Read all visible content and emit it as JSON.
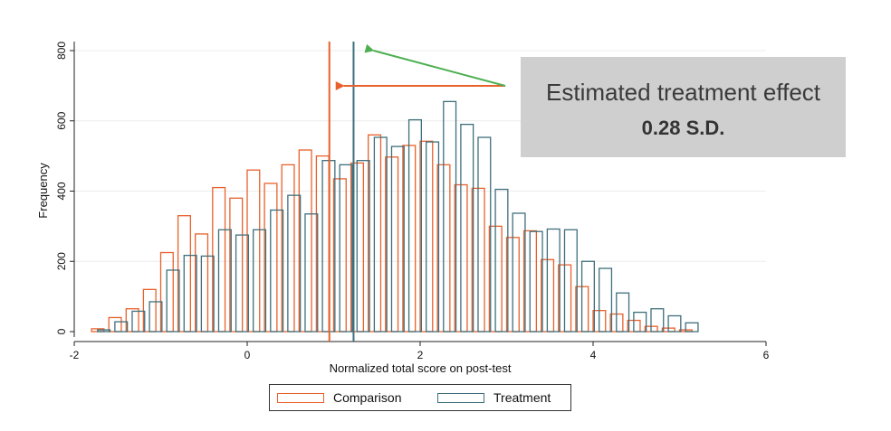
{
  "chart_data": {
    "type": "histogram",
    "xlabel": "Normalized total score on post-test",
    "ylabel": "Frequency",
    "xlim": [
      -2,
      6
    ],
    "ylim": [
      0,
      800
    ],
    "xticks": [
      -2,
      0,
      2,
      4,
      6
    ],
    "yticks": [
      0,
      200,
      400,
      600,
      800
    ],
    "grid": true,
    "legend_position": "bottom",
    "bin_width": 0.2,
    "series": [
      {
        "name": "Comparison",
        "color": "#e8612c",
        "bins": [
          {
            "x0": -1.8,
            "x1": -1.6,
            "y": 8
          },
          {
            "x0": -1.6,
            "x1": -1.4,
            "y": 40
          },
          {
            "x0": -1.4,
            "x1": -1.2,
            "y": 65
          },
          {
            "x0": -1.2,
            "x1": -1.0,
            "y": 120
          },
          {
            "x0": -1.0,
            "x1": -0.8,
            "y": 225
          },
          {
            "x0": -0.8,
            "x1": -0.6,
            "y": 330
          },
          {
            "x0": -0.6,
            "x1": -0.4,
            "y": 278
          },
          {
            "x0": -0.4,
            "x1": -0.2,
            "y": 410
          },
          {
            "x0": -0.2,
            "x1": 0.0,
            "y": 380
          },
          {
            "x0": 0.0,
            "x1": 0.2,
            "y": 460
          },
          {
            "x0": 0.2,
            "x1": 0.4,
            "y": 422
          },
          {
            "x0": 0.4,
            "x1": 0.6,
            "y": 475
          },
          {
            "x0": 0.6,
            "x1": 0.8,
            "y": 517
          },
          {
            "x0": 0.8,
            "x1": 1.0,
            "y": 500
          },
          {
            "x0": 1.0,
            "x1": 1.2,
            "y": 435
          },
          {
            "x0": 1.2,
            "x1": 1.4,
            "y": 480
          },
          {
            "x0": 1.4,
            "x1": 1.6,
            "y": 560
          },
          {
            "x0": 1.6,
            "x1": 1.8,
            "y": 497
          },
          {
            "x0": 1.8,
            "x1": 2.0,
            "y": 530
          },
          {
            "x0": 2.0,
            "x1": 2.2,
            "y": 542
          },
          {
            "x0": 2.2,
            "x1": 2.4,
            "y": 475
          },
          {
            "x0": 2.4,
            "x1": 2.6,
            "y": 418
          },
          {
            "x0": 2.6,
            "x1": 2.8,
            "y": 408
          },
          {
            "x0": 2.8,
            "x1": 3.0,
            "y": 300
          },
          {
            "x0": 3.0,
            "x1": 3.2,
            "y": 268
          },
          {
            "x0": 3.2,
            "x1": 3.4,
            "y": 287
          },
          {
            "x0": 3.4,
            "x1": 3.6,
            "y": 205
          },
          {
            "x0": 3.6,
            "x1": 3.8,
            "y": 190
          },
          {
            "x0": 3.8,
            "x1": 4.0,
            "y": 128
          },
          {
            "x0": 4.0,
            "x1": 4.2,
            "y": 60
          },
          {
            "x0": 4.2,
            "x1": 4.4,
            "y": 50
          },
          {
            "x0": 4.4,
            "x1": 4.6,
            "y": 32
          },
          {
            "x0": 4.6,
            "x1": 4.8,
            "y": 15
          },
          {
            "x0": 4.8,
            "x1": 5.0,
            "y": 10
          },
          {
            "x0": 5.0,
            "x1": 5.2,
            "y": 5
          }
        ]
      },
      {
        "name": "Treatment",
        "color": "#3f6f7c",
        "bins": [
          {
            "x0": -1.8,
            "x1": -1.6,
            "y": 5
          },
          {
            "x0": -1.6,
            "x1": -1.4,
            "y": 28
          },
          {
            "x0": -1.4,
            "x1": -1.2,
            "y": 58
          },
          {
            "x0": -1.2,
            "x1": -1.0,
            "y": 85
          },
          {
            "x0": -1.0,
            "x1": -0.8,
            "y": 175
          },
          {
            "x0": -0.8,
            "x1": -0.6,
            "y": 217
          },
          {
            "x0": -0.6,
            "x1": -0.4,
            "y": 215
          },
          {
            "x0": -0.4,
            "x1": -0.2,
            "y": 290
          },
          {
            "x0": -0.2,
            "x1": 0.0,
            "y": 275
          },
          {
            "x0": 0.0,
            "x1": 0.2,
            "y": 290
          },
          {
            "x0": 0.2,
            "x1": 0.4,
            "y": 346
          },
          {
            "x0": 0.4,
            "x1": 0.6,
            "y": 388
          },
          {
            "x0": 0.6,
            "x1": 0.8,
            "y": 335
          },
          {
            "x0": 0.8,
            "x1": 1.0,
            "y": 487
          },
          {
            "x0": 1.0,
            "x1": 1.2,
            "y": 475
          },
          {
            "x0": 1.2,
            "x1": 1.4,
            "y": 487
          },
          {
            "x0": 1.4,
            "x1": 1.6,
            "y": 553
          },
          {
            "x0": 1.6,
            "x1": 1.8,
            "y": 527
          },
          {
            "x0": 1.8,
            "x1": 2.0,
            "y": 603
          },
          {
            "x0": 2.0,
            "x1": 2.2,
            "y": 540
          },
          {
            "x0": 2.2,
            "x1": 2.4,
            "y": 655
          },
          {
            "x0": 2.4,
            "x1": 2.6,
            "y": 590
          },
          {
            "x0": 2.6,
            "x1": 2.8,
            "y": 553
          },
          {
            "x0": 2.8,
            "x1": 3.0,
            "y": 405
          },
          {
            "x0": 3.0,
            "x1": 3.2,
            "y": 337
          },
          {
            "x0": 3.2,
            "x1": 3.4,
            "y": 285
          },
          {
            "x0": 3.4,
            "x1": 3.6,
            "y": 292
          },
          {
            "x0": 3.6,
            "x1": 3.8,
            "y": 290
          },
          {
            "x0": 3.8,
            "x1": 4.0,
            "y": 200
          },
          {
            "x0": 4.0,
            "x1": 4.2,
            "y": 180
          },
          {
            "x0": 4.2,
            "x1": 4.4,
            "y": 110
          },
          {
            "x0": 4.4,
            "x1": 4.6,
            "y": 55
          },
          {
            "x0": 4.6,
            "x1": 4.8,
            "y": 65
          },
          {
            "x0": 4.8,
            "x1": 5.0,
            "y": 45
          },
          {
            "x0": 5.0,
            "x1": 5.2,
            "y": 25
          }
        ]
      }
    ],
    "reference_lines": [
      {
        "series": "Comparison",
        "x": 0.95,
        "color": "#e8612c"
      },
      {
        "series": "Treatment",
        "x": 1.23,
        "color": "#3f6f7c"
      }
    ],
    "annotation": {
      "text": "Estimated treatment effect",
      "value": "0.28 S.D.",
      "box_color": "#cfcfcf",
      "arrow_colors": [
        "#e8612c",
        "#4caf50"
      ]
    }
  }
}
